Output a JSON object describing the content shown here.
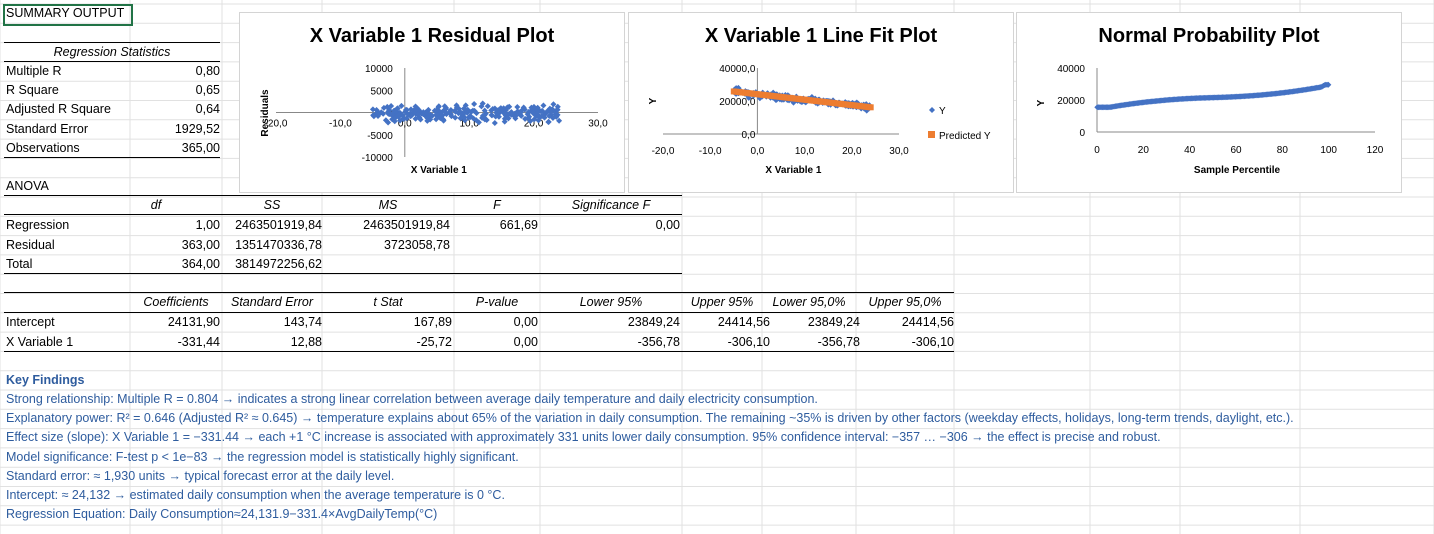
{
  "summary": {
    "title": "SUMMARY OUTPUT",
    "regstats_header": "Regression Statistics",
    "stats": [
      {
        "label": "Multiple R",
        "value": "0,80"
      },
      {
        "label": "R Square",
        "value": "0,65"
      },
      {
        "label": "Adjusted R Square",
        "value": "0,64"
      },
      {
        "label": "Standard Error",
        "value": "1929,52"
      },
      {
        "label": "Observations",
        "value": "365,00"
      }
    ]
  },
  "anova": {
    "title": "ANOVA",
    "headers": [
      "df",
      "SS",
      "MS",
      "F",
      "Significance F"
    ],
    "rows": [
      {
        "label": "Regression",
        "df": "1,00",
        "ss": "2463501919,84",
        "ms": "2463501919,84",
        "f": "661,69",
        "sig": "0,00"
      },
      {
        "label": "Residual",
        "df": "363,00",
        "ss": "1351470336,78",
        "ms": "3723058,78"
      },
      {
        "label": "Total",
        "df": "364,00",
        "ss": "3814972256,62"
      }
    ]
  },
  "coef": {
    "headers": [
      "Coefficients",
      "Standard Error",
      "t Stat",
      "P-value",
      "Lower 95%",
      "Upper 95%",
      "Lower 95,0%",
      "Upper 95,0%"
    ],
    "rows": [
      {
        "label": "Intercept",
        "values": [
          "24131,90",
          "143,74",
          "167,89",
          "0,00",
          "23849,24",
          "24414,56",
          "23849,24",
          "24414,56"
        ]
      },
      {
        "label": "X Variable 1",
        "values": [
          "-331,44",
          "12,88",
          "-25,72",
          "0,00",
          "-356,78",
          "-306,10",
          "-356,78",
          "-306,10"
        ]
      }
    ]
  },
  "findings": {
    "title": "Key Findings",
    "lines": [
      "Strong relationship: Multiple R = 0.804 → indicates a strong linear correlation between average daily temperature and daily electricity consumption.",
      "Explanatory power: R² = 0.646 (Adjusted R² ≈ 0.645) → temperature explains about 65% of the variation in daily consumption. The remaining ~35% is driven by other factors (weekday effects, holidays, long-term trends, daylight, etc.).",
      "Effect size (slope): X Variable 1 = −331.44 → each +1 °C increase is associated with approximately 331 units lower daily consumption. 95% confidence interval: −357 … −306 → the effect is precise and robust.",
      "Model significance: F-test p < 1e−83 → the regression model is statistically highly significant.",
      "Standard error: ≈ 1,930 units → typical forecast error at the daily level.",
      "Intercept: ≈ 24,132 → estimated daily consumption when the average temperature is 0 °C.",
      "Regression Equation: Daily Consumption≈24,131.9−331.4×AvgDailyTemp(°C)"
    ]
  },
  "colors": {
    "series_blue": "#4472C4",
    "series_orange": "#ED7D31",
    "findings_text": "#2E5C9E"
  },
  "chart_data": [
    {
      "type": "scatter",
      "title": "X Variable 1  Residual Plot",
      "xlabel": "X Variable 1",
      "ylabel": "Residuals",
      "xlim": [
        -20,
        30
      ],
      "ylim": [
        -10000,
        10000
      ],
      "x_ticks": [
        "-20,0",
        "-10,0",
        "0,0",
        "10,0",
        "20,0",
        "30,0"
      ],
      "y_ticks": [
        "10000",
        "5000",
        "0",
        "-5000",
        "-10000"
      ],
      "series": [
        {
          "marker": "diamond",
          "x_range": [
            -5,
            24
          ],
          "y_range": [
            -3500,
            3800
          ]
        }
      ]
    },
    {
      "type": "scatter",
      "title": "X Variable 1 Line Fit  Plot",
      "xlabel": "X Variable 1",
      "ylabel": "Y",
      "xlim": [
        -20,
        30
      ],
      "ylim": [
        0,
        40000
      ],
      "x_ticks": [
        "-20,0",
        "-10,0",
        "0,0",
        "10,0",
        "20,0",
        "30,0"
      ],
      "y_ticks": [
        "40000,0",
        "20000,0",
        "0,0"
      ],
      "legend_position": "right",
      "series": [
        {
          "name": "Y",
          "marker": "diamond",
          "x_range": [
            -5,
            24
          ],
          "y_range": [
            14000,
            29000
          ]
        },
        {
          "name": "Predicted Y",
          "marker": "square",
          "x_range": [
            -5,
            24
          ],
          "intercept": 24131.9,
          "slope": -331.44
        }
      ]
    },
    {
      "type": "scatter",
      "title": "Normal Probability Plot",
      "xlabel": "Sample Percentile",
      "ylabel": "Y",
      "xlim": [
        0,
        120
      ],
      "ylim": [
        0,
        40000
      ],
      "x_ticks": [
        "0",
        "20",
        "40",
        "60",
        "80",
        "100",
        "120"
      ],
      "y_ticks": [
        "40000",
        "20000",
        "0"
      ],
      "series": [
        {
          "marker": "diamond",
          "x_range": [
            0.14,
            99.86
          ],
          "y_range": [
            15500,
            29500
          ]
        }
      ]
    }
  ]
}
